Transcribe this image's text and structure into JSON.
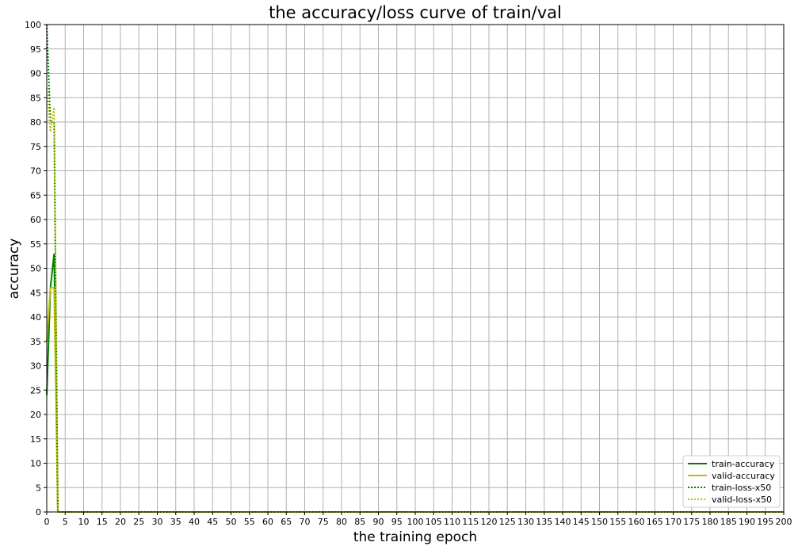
{
  "chart_data": {
    "type": "line",
    "title": "the accuracy/loss curve of train/val",
    "xlabel": "the training epoch",
    "ylabel": "accuracy",
    "xlim": [
      0,
      200
    ],
    "ylim": [
      0,
      100
    ],
    "xticks": [
      0,
      5,
      10,
      15,
      20,
      25,
      30,
      35,
      40,
      45,
      50,
      55,
      60,
      65,
      70,
      75,
      80,
      85,
      90,
      95,
      100,
      105,
      110,
      115,
      120,
      125,
      130,
      135,
      140,
      145,
      150,
      155,
      160,
      165,
      170,
      175,
      180,
      185,
      190,
      195,
      200
    ],
    "yticks": [
      0,
      5,
      10,
      15,
      20,
      25,
      30,
      35,
      40,
      45,
      50,
      55,
      60,
      65,
      70,
      75,
      80,
      85,
      90,
      95,
      100
    ],
    "grid": true,
    "legend_position": "lower-right",
    "series": [
      {
        "name": "train-accuracy",
        "color": "#008000",
        "style": "solid",
        "x": [
          0,
          1,
          2,
          3,
          200
        ],
        "y": [
          24,
          46,
          53,
          0,
          0
        ]
      },
      {
        "name": "valid-accuracy",
        "color": "#bfbf00",
        "style": "solid",
        "x": [
          0,
          1,
          2,
          3,
          200
        ],
        "y": [
          35,
          46,
          46,
          0,
          0
        ]
      },
      {
        "name": "train-loss-x50",
        "color": "#008000",
        "style": "dotted",
        "x": [
          0,
          1,
          2,
          3,
          200
        ],
        "y": [
          100,
          80,
          80,
          0,
          0
        ]
      },
      {
        "name": "valid-loss-x50",
        "color": "#bfbf00",
        "style": "dotted",
        "x": [
          0,
          1,
          2,
          3,
          200
        ],
        "y": [
          87,
          78,
          83,
          0,
          0
        ]
      }
    ]
  }
}
